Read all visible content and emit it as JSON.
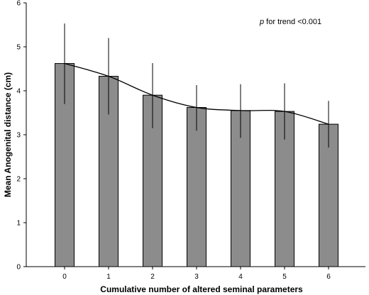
{
  "chart_data": {
    "type": "bar",
    "categories": [
      "0",
      "1",
      "2",
      "3",
      "4",
      "5",
      "6"
    ],
    "values": [
      4.62,
      4.33,
      3.9,
      3.62,
      3.55,
      3.53,
      3.24
    ],
    "error_upper": [
      5.53,
      5.2,
      4.63,
      4.13,
      4.15,
      4.17,
      3.77
    ],
    "error_lower": [
      3.7,
      3.46,
      3.15,
      3.09,
      2.93,
      2.89,
      2.71
    ],
    "trend_line": true,
    "xlabel": "Cumulative number of altered seminal parameters",
    "ylabel": "Mean Anogenital distance (cm)",
    "ylim": [
      0,
      6
    ],
    "yticks": [
      "0",
      "1",
      "2",
      "3",
      "4",
      "5",
      "6"
    ],
    "grid": false,
    "annotation": {
      "italic_part": "p",
      "rest": " for trend <0.001"
    },
    "colors": {
      "bar_fill": "#8c8c8c",
      "bar_stroke": "#000000",
      "line": "#000000"
    }
  }
}
